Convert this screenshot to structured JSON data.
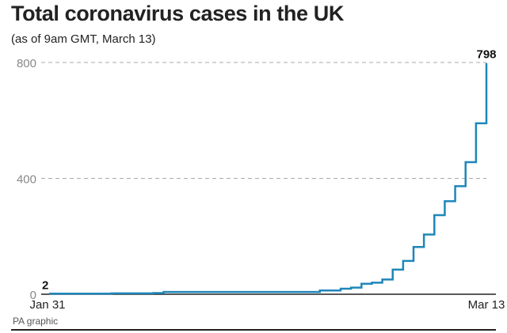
{
  "header": {
    "title": "Total coronavirus cases in the UK",
    "subtitle": "(as of 9am GMT, March 13)"
  },
  "footer": {
    "source": "PA graphic"
  },
  "chart_data": {
    "type": "line",
    "step": true,
    "title": "Total coronavirus cases in the UK",
    "subtitle": "(as of 9am GMT, March 13)",
    "xlabel": "",
    "ylabel": "",
    "x": [
      "2020-01-31",
      "2020-02-06",
      "2020-02-10",
      "2020-02-11",
      "2020-02-26",
      "2020-02-28",
      "2020-02-29",
      "2020-03-01",
      "2020-03-02",
      "2020-03-03",
      "2020-03-04",
      "2020-03-05",
      "2020-03-06",
      "2020-03-07",
      "2020-03-08",
      "2020-03-09",
      "2020-03-10",
      "2020-03-11",
      "2020-03-12",
      "2020-03-13"
    ],
    "values": [
      2,
      3,
      4,
      8,
      13,
      19,
      23,
      36,
      40,
      51,
      85,
      115,
      163,
      206,
      273,
      321,
      373,
      456,
      590,
      798
    ],
    "ylim": [
      0,
      800
    ],
    "yticks": [
      0,
      400,
      800
    ],
    "xtick_labels": [
      "Jan 31",
      "Mar 13"
    ],
    "data_labels": [
      {
        "x": "2020-01-31",
        "text": "2"
      },
      {
        "x": "2020-03-13",
        "text": "798"
      }
    ],
    "grid": "horizontal dashed",
    "colors": {
      "line": "#1f86b9",
      "grid": "#aaaaaa",
      "axis": "#222222",
      "tick_text": "#888888"
    }
  }
}
